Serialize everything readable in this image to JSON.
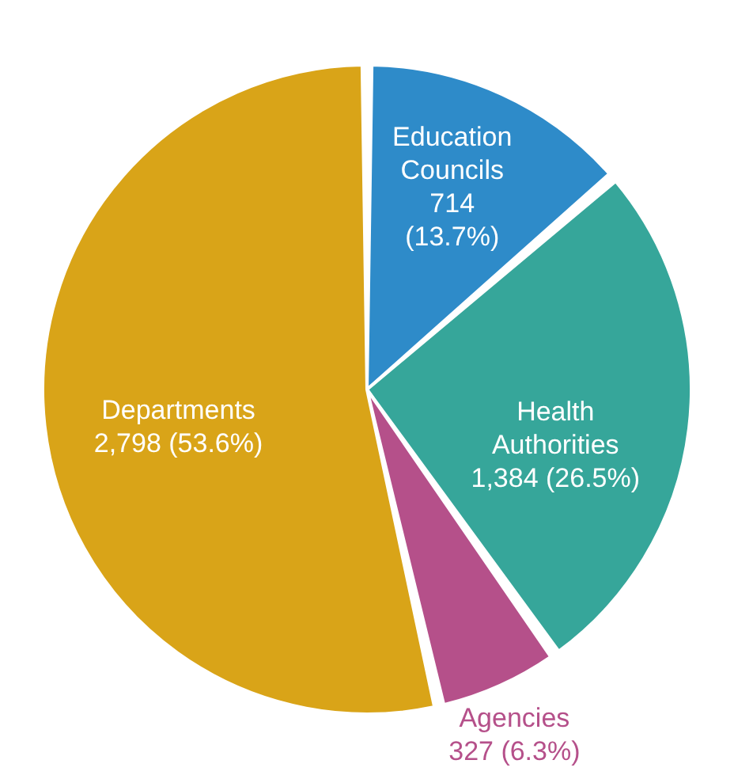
{
  "chart_data": {
    "type": "pie",
    "categories": [
      "Education Councils",
      "Health Authorities",
      "Agencies",
      "Departments"
    ],
    "values": [
      714,
      1384,
      327,
      2798
    ],
    "colors": [
      "#2e8bc9",
      "#36a69a",
      "#b5508a",
      "#d9a418"
    ],
    "value_labels": [
      "714 (13.7%)",
      "1,384 (26.5%)",
      "327 (6.3%)",
      "2,798 (53.6%)"
    ]
  }
}
